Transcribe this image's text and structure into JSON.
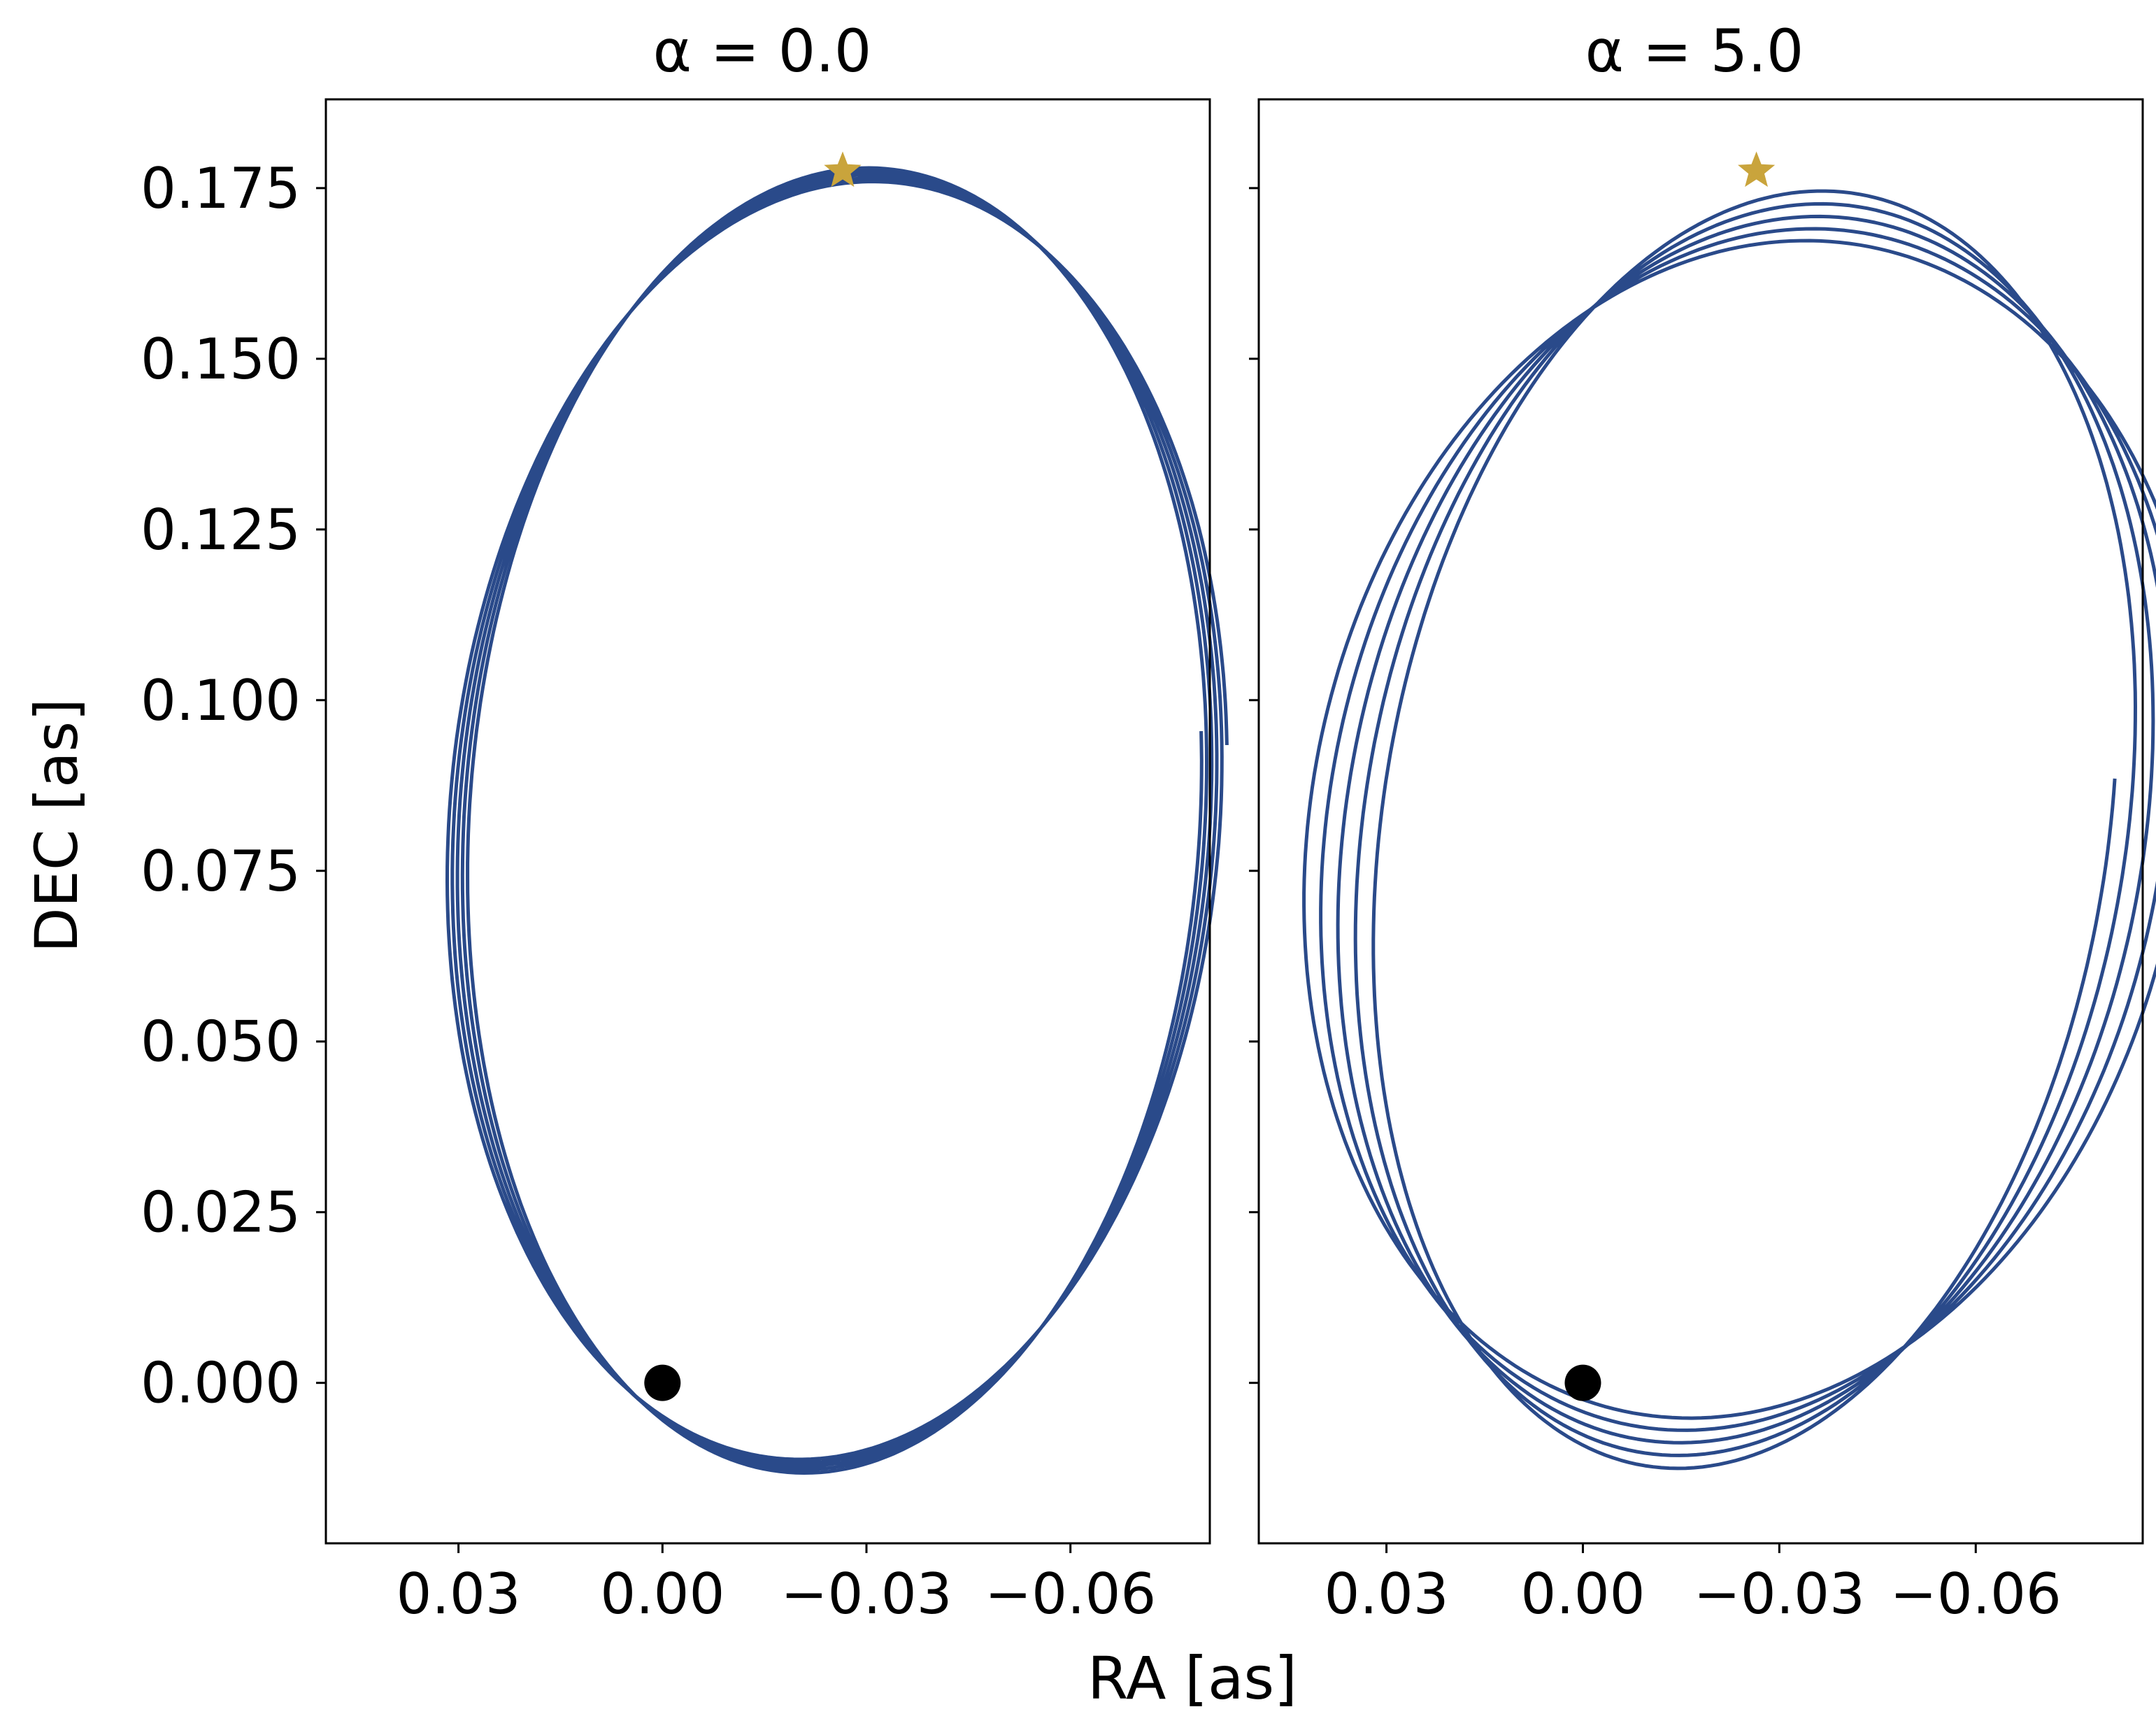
{
  "chart_data": [
    {
      "type": "line",
      "title": "α = 0.0",
      "xlabel": "RA [as]",
      "ylabel": "DEC [as]",
      "x_reversed": true,
      "xlim": [
        0.0495,
        -0.0805
      ],
      "ylim": [
        -0.0235,
        0.188
      ],
      "xticks": [
        0.03,
        0.0,
        -0.03,
        -0.06
      ],
      "xtick_labels": [
        "0.03",
        "0.00",
        "−0.03",
        "−0.06"
      ],
      "yticks": [
        0.0,
        0.025,
        0.05,
        0.075,
        0.1,
        0.125,
        0.15,
        0.175
      ],
      "ytick_labels": [
        "0.000",
        "0.025",
        "0.050",
        "0.075",
        "0.100",
        "0.125",
        "0.150",
        "0.175"
      ],
      "grid": false,
      "orbit": {
        "color": "#2a4a8a",
        "x_center": -0.0255,
        "y_center": 0.0825,
        "semi_x": 0.0535,
        "semi_y": 0.096,
        "tilt_deg": 4,
        "revolutions": 5,
        "drift_per_rev": 0.0012,
        "start_angle_deg": 170
      },
      "central_body": {
        "x": 0.0,
        "y": 0.0,
        "color": "#000000"
      },
      "star_marker": {
        "x": -0.0265,
        "y": 0.1775,
        "color": "#c9a43c"
      }
    },
    {
      "type": "line",
      "title": "α = 5.0",
      "xlabel": "RA [as]",
      "ylabel": "DEC [as]",
      "x_reversed": true,
      "xlim": [
        0.0495,
        -0.0855
      ],
      "ylim": [
        -0.0235,
        0.188
      ],
      "xticks": [
        0.03,
        0.0,
        -0.03,
        -0.06
      ],
      "xtick_labels": [
        "0.03",
        "0.00",
        "−0.03",
        "−0.06"
      ],
      "yticks": [
        0.0,
        0.025,
        0.05,
        0.075,
        0.1,
        0.125,
        0.15,
        0.175
      ],
      "ytick_labels": [
        "",
        "",
        "",
        "",
        "",
        "",
        "",
        ""
      ],
      "grid": false,
      "orbit": {
        "color": "#2a4a8a",
        "x_center": -0.0255,
        "y_center": 0.0815,
        "semi_x": 0.0545,
        "semi_y": 0.0955,
        "tilt_deg": 10,
        "revolutions": 5,
        "drift_per_rev": 0.0045,
        "start_angle_deg": 170
      },
      "central_body": {
        "x": 0.0,
        "y": 0.0,
        "color": "#000000"
      },
      "star_marker": {
        "x": -0.0265,
        "y": 0.1775,
        "color": "#c9a43c"
      }
    }
  ],
  "figure": {
    "shared_xlabel": "RA [as]",
    "shared_ylabel": "DEC [as]"
  }
}
